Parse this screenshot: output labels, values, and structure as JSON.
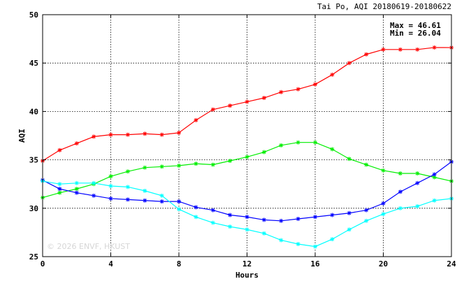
{
  "chart_data": {
    "type": "line",
    "title": "Tai Po, AQI 20180619-20180622",
    "xlabel": "Hours",
    "ylabel": "AQI",
    "xlim": [
      0,
      24
    ],
    "ylim": [
      25,
      50
    ],
    "xticks": [
      0,
      4,
      8,
      12,
      16,
      20,
      24
    ],
    "yticks": [
      25,
      30,
      35,
      40,
      45,
      50
    ],
    "grid": true,
    "annotations": {
      "max_text": "Max = 46.61",
      "min_text": "Min = 26.04"
    },
    "watermark": "© 2026  ENVF, HKUST",
    "x": [
      0,
      1,
      2,
      3,
      4,
      5,
      6,
      7,
      8,
      9,
      10,
      11,
      12,
      13,
      14,
      15,
      16,
      17,
      18,
      19,
      20,
      21,
      22,
      23,
      24
    ],
    "series": [
      {
        "color": "#ff0000",
        "values": [
          34.9,
          36.0,
          36.7,
          37.4,
          37.6,
          37.6,
          37.7,
          37.6,
          37.8,
          39.1,
          40.2,
          40.6,
          41.0,
          41.4,
          42.0,
          42.3,
          42.8,
          43.8,
          45.0,
          45.9,
          46.4,
          46.4,
          46.4,
          46.61,
          46.6
        ]
      },
      {
        "color": "#00ee00",
        "values": [
          31.1,
          31.6,
          32.0,
          32.5,
          33.3,
          33.8,
          34.2,
          34.3,
          34.4,
          34.6,
          34.5,
          34.9,
          35.3,
          35.8,
          36.5,
          36.8,
          36.8,
          36.1,
          35.1,
          34.5,
          33.9,
          33.6,
          33.6,
          33.2,
          32.8
        ]
      },
      {
        "color": "#0000ff",
        "values": [
          32.9,
          32.0,
          31.6,
          31.3,
          31.0,
          30.9,
          30.8,
          30.7,
          30.7,
          30.1,
          29.8,
          29.3,
          29.1,
          28.8,
          28.7,
          28.9,
          29.1,
          29.3,
          29.5,
          29.8,
          30.5,
          31.7,
          32.6,
          33.5,
          34.8
        ]
      },
      {
        "color": "#00ffff",
        "values": [
          32.8,
          32.5,
          32.6,
          32.6,
          32.3,
          32.2,
          31.8,
          31.3,
          29.9,
          29.1,
          28.5,
          28.1,
          27.8,
          27.4,
          26.7,
          26.3,
          26.04,
          26.8,
          27.8,
          28.7,
          29.4,
          30.0,
          30.2,
          30.8,
          31.0
        ]
      }
    ]
  }
}
